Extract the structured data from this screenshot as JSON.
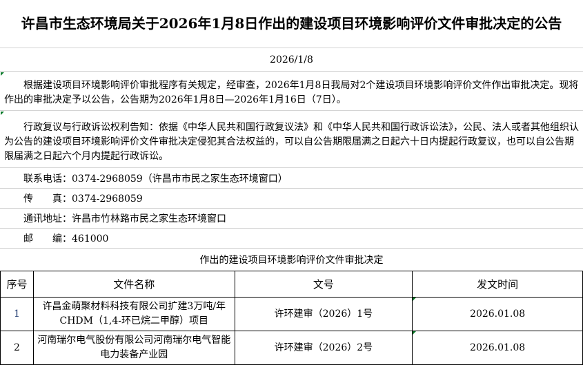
{
  "title": "许昌市生态环境局关于2026年1月8日作出的建设项目环境影响评价文件审批决定的公告",
  "date": "2026/1/8",
  "paragraph1": "根据建设项目环境影响评价审批程序有关规定，经审查，2026年1月8日我局对2个建设项目环境影响评价文件作出审批决定。现将作出的审批决定予以公告，公告期为2026年1月8日—2026年1月16日（7日）。",
  "paragraph2": "行政复议与行政诉讼权利告知：依据《中华人民共和国行政复议法》和《中华人民共和国行政诉讼法》，公民、法人或者其他组织认为公告的建设项目环境影响评价文件审批决定侵犯其合法权益的，可以自公告期限届满之日起六十日内提起行政复议，也可以自公告期限届满之日起六个月内提起行政诉讼。",
  "contact": {
    "phone": "联系电话：0374-2968059（许昌市市民之家生态环境窗口）",
    "fax": "传　　真：0374-2968059",
    "address": "通讯地址：许昌市竹林路市民之家生态环境窗口",
    "postcode": "邮　　编：461000"
  },
  "section_title": "作出的建设项目环境影响评价文件审批决定",
  "table": {
    "headers": [
      "序号",
      "文件名称",
      "文号",
      "发文时间"
    ],
    "rows": [
      {
        "seq": "1",
        "name": "许昌金萌聚材料科技有限公司扩建3万吨/年CHDM（1,4-环已烷二甲醇）项目",
        "doc_no": "许环建审（2026）1号",
        "date": "2026.01.08"
      },
      {
        "seq": "2",
        "name": "河南瑞尔电气股份有限公司河南瑞尔电气智能电力装备产业园",
        "doc_no": "许环建审（2026）2号",
        "date": "2026.01.08"
      }
    ]
  }
}
